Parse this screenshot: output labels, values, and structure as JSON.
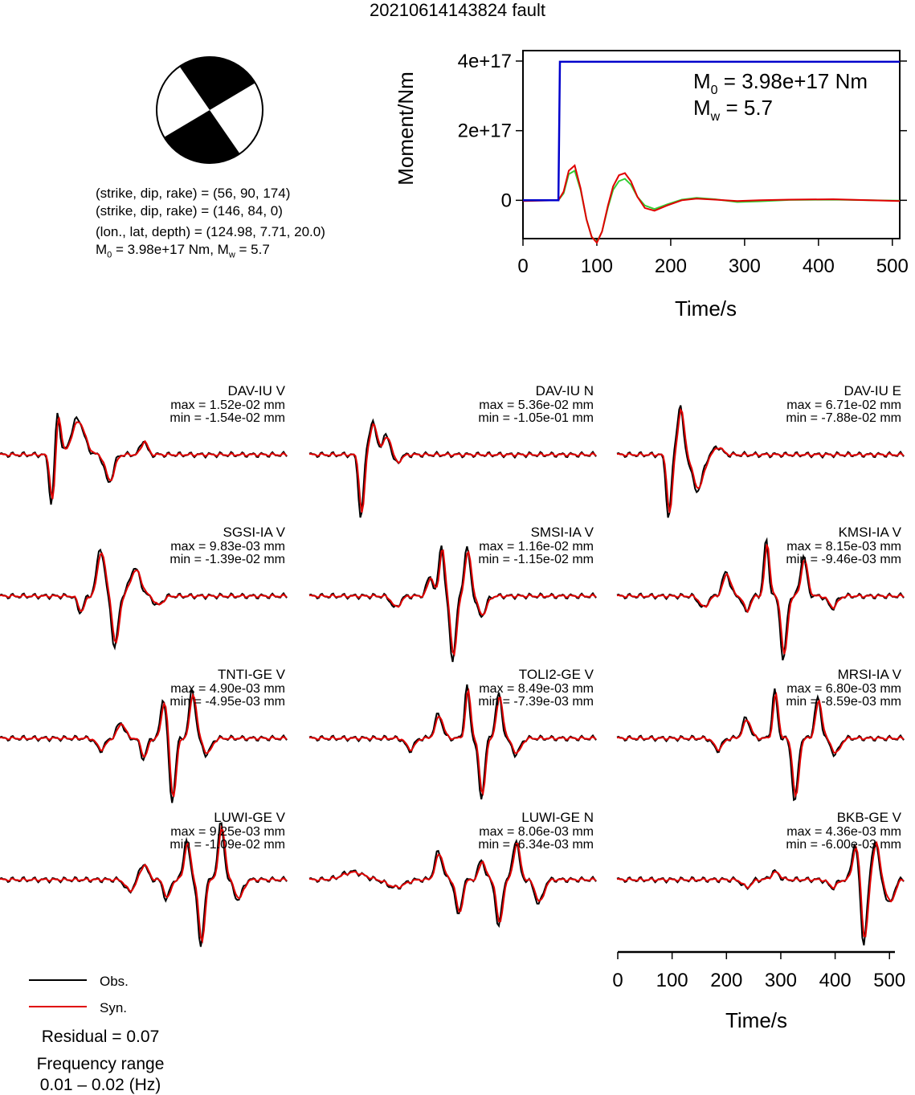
{
  "title": "20210614143824 fault",
  "mechanism": {
    "line1": "(strike, dip, rake) = (56, 90, 174)",
    "line2": "(strike, dip, rake) = (146, 84, 0)",
    "line3": "(lon., lat, depth) = (124.98, 7.71, 20.0)",
    "line4_pre": "M",
    "line4_sub": "0",
    "line4_post": " = 3.98e+17 Nm, M",
    "line4_sub2": "w",
    "line4_end": " = 5.7"
  },
  "colors": {
    "obs": "#000000",
    "syn": "#e00000",
    "moment": "#0000cc",
    "stf_green": "#33cc33",
    "stf_red": "#e00000"
  },
  "chart_data": [
    {
      "type": "line",
      "title": "",
      "xlabel": "Time/s",
      "ylabel": "Moment/Nm",
      "xlim": [
        0,
        510
      ],
      "ylim": [
        -1.1e+17,
        4.3e+17
      ],
      "xticks": [
        0,
        100,
        200,
        300,
        400,
        500
      ],
      "yticks": [
        0,
        2e+17,
        4e+17
      ],
      "ytick_labels": [
        "0",
        "2e+17",
        "4e+17"
      ],
      "annotation_m0_pre": "M",
      "annotation_m0_sub": "0",
      "annotation_m0_post": " = 3.98e+17 Nm",
      "annotation_mw_pre": "M",
      "annotation_mw_sub": "w",
      "annotation_mw_post": " = 5.7",
      "series": [
        {
          "x": [
            0,
            48,
            50,
            510
          ],
          "y": [
            0,
            0,
            3.98e+17,
            3.98e+17
          ]
        }
      ],
      "stf_green": [
        [
          0,
          0
        ],
        [
          48,
          0
        ],
        [
          55,
          2e+16
        ],
        [
          62,
          7.5e+16
        ],
        [
          70,
          8.5e+16
        ],
        [
          78,
          3e+16
        ],
        [
          86,
          -5.5e+16
        ],
        [
          93,
          -1.05e+17
        ],
        [
          100,
          -1.2e+17
        ],
        [
          107,
          -9e+16
        ],
        [
          115,
          -2e+16
        ],
        [
          122,
          3e+16
        ],
        [
          130,
          5.5e+16
        ],
        [
          138,
          6.2e+16
        ],
        [
          146,
          4.5e+16
        ],
        [
          155,
          1e+16
        ],
        [
          165,
          -1.5e+16
        ],
        [
          178,
          -2.5e+16
        ],
        [
          195,
          -1.2e+16
        ],
        [
          215,
          2000000000000000.0
        ],
        [
          235,
          7000000000000000.0
        ],
        [
          260,
          3000000000000000.0
        ],
        [
          290,
          -5000000000000000.0
        ],
        [
          320,
          -3000000000000000.0
        ],
        [
          360,
          1000000000000000.0
        ],
        [
          420,
          2000000000000000.0
        ],
        [
          470,
          0.0
        ],
        [
          510,
          -1000000000000000.0
        ]
      ],
      "stf_red": [
        [
          0,
          -2000000000000000.0
        ],
        [
          48,
          0
        ],
        [
          55,
          2.5e+16
        ],
        [
          62,
          8.5e+16
        ],
        [
          70,
          1e+17
        ],
        [
          78,
          3.5e+16
        ],
        [
          86,
          -5.5e+16
        ],
        [
          93,
          -1.05e+17
        ],
        [
          100,
          -1.22e+17
        ],
        [
          107,
          -9e+16
        ],
        [
          115,
          -1.5e+16
        ],
        [
          122,
          4e+16
        ],
        [
          130,
          7.2e+16
        ],
        [
          138,
          7.8e+16
        ],
        [
          146,
          5.5e+16
        ],
        [
          155,
          1e+16
        ],
        [
          165,
          -2.2e+16
        ],
        [
          178,
          -3e+16
        ],
        [
          195,
          -1.5e+16
        ],
        [
          215,
          0.0
        ],
        [
          235,
          5000000000000000.0
        ],
        [
          260,
          2000000000000000.0
        ],
        [
          290,
          -2000000000000000.0
        ],
        [
          320,
          0.0
        ],
        [
          360,
          2000000000000000.0
        ],
        [
          420,
          3000000000000000.0
        ],
        [
          470,
          0.0
        ],
        [
          510,
          -2000000000000000.0
        ]
      ]
    },
    {
      "type": "line",
      "xlabel": "Time/s",
      "xlim": [
        0,
        510
      ],
      "xticks": [
        0,
        100,
        200,
        300,
        400,
        500
      ],
      "traces": [
        {
          "name": "DAV-IU V",
          "max": "max = 1.52e-02 mm",
          "min": "min = -1.54e-02 mm"
        },
        {
          "name": "DAV-IU N",
          "max": "max = 5.36e-02 mm",
          "min": "min = -1.05e-01 mm"
        },
        {
          "name": "DAV-IU E",
          "max": "max = 6.71e-02 mm",
          "min": "min = -7.88e-02 mm"
        },
        {
          "name": "SGSI-IA V",
          "max": "max = 9.83e-03 mm",
          "min": "min = -1.39e-02 mm"
        },
        {
          "name": "SMSI-IA V",
          "max": "max = 1.16e-02 mm",
          "min": "min = -1.15e-02 mm"
        },
        {
          "name": "KMSI-IA V",
          "max": "max = 8.15e-03 mm",
          "min": "min = -9.46e-03 mm"
        },
        {
          "name": "TNTI-GE V",
          "max": "max = 4.90e-03 mm",
          "min": "min = -4.95e-03 mm"
        },
        {
          "name": "TOLI2-GE V",
          "max": "max = 8.49e-03 mm",
          "min": "min = -7.39e-03 mm"
        },
        {
          "name": "MRSI-IA V",
          "max": "max = 6.80e-03 mm",
          "min": "min = -8.59e-03 mm"
        },
        {
          "name": "LUWI-GE V",
          "max": "max = 9.25e-03 mm",
          "min": "min = -1.09e-02 mm"
        },
        {
          "name": "LUWI-GE N",
          "max": "max = 8.06e-03 mm",
          "min": "min = -6.34e-03 mm"
        },
        {
          "name": "BKB-GE V",
          "max": "max = 4.36e-03 mm",
          "min": "min = -6.00e-03 mm"
        }
      ]
    }
  ],
  "legend": {
    "obs": "Obs.",
    "syn": "Syn."
  },
  "residual": "Residual = 0.07",
  "freq_label": "Frequency range",
  "freq_value": "0.01 – 0.02 (Hz)"
}
